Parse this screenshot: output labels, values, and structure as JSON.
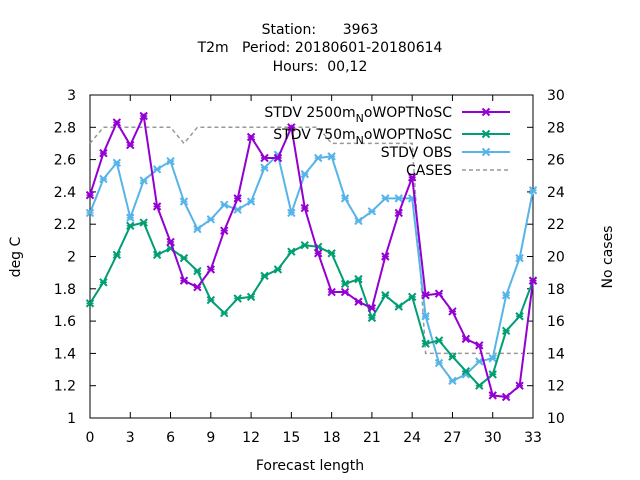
{
  "chart_data": {
    "type": "line",
    "title_lines": [
      "Station:      3963",
      "T2m   Period: 20180601-20180614",
      "Hours:  00,12"
    ],
    "xlabel": "Forecast length",
    "ylabel": "deg C",
    "y2label": "No cases",
    "xlim": [
      0,
      33
    ],
    "ylim": [
      1,
      3
    ],
    "y2lim": [
      10,
      30
    ],
    "xticks": [
      0,
      3,
      6,
      9,
      12,
      15,
      18,
      21,
      24,
      27,
      30,
      33
    ],
    "yticks": [
      1,
      1.2,
      1.4,
      1.6,
      1.8,
      2,
      2.2,
      2.4,
      2.6,
      2.8,
      3
    ],
    "y2ticks": [
      10,
      12,
      14,
      16,
      18,
      20,
      22,
      24,
      26,
      28,
      30
    ],
    "x": [
      0,
      1,
      2,
      3,
      4,
      5,
      6,
      7,
      8,
      9,
      10,
      11,
      12,
      13,
      14,
      15,
      16,
      17,
      18,
      19,
      20,
      21,
      22,
      23,
      24,
      25,
      26,
      27,
      28,
      29,
      30,
      31,
      32,
      33
    ],
    "legend_position": "top-right",
    "grid": false,
    "series": [
      {
        "name": "STDV 2500m_oWOPTNoSC",
        "name_parts": [
          "STDV 2500m",
          "N",
          "oWOPTNoSC"
        ],
        "color": "#9400d3",
        "marker": "x",
        "axis": "y",
        "values": [
          2.38,
          2.64,
          2.83,
          2.69,
          2.87,
          2.31,
          2.09,
          1.85,
          1.81,
          1.92,
          2.16,
          2.36,
          2.74,
          2.61,
          2.61,
          2.8,
          2.3,
          2.02,
          1.78,
          1.78,
          1.72,
          1.68,
          2.0,
          2.27,
          2.49,
          1.76,
          1.77,
          1.66,
          1.49,
          1.45,
          1.14,
          1.13,
          1.2,
          1.85
        ]
      },
      {
        "name": "STDV 750m_oWOPTNoSC",
        "name_parts": [
          "STDV 750m",
          "N",
          "oWOPTNoSC"
        ],
        "color": "#009e73",
        "marker": "x",
        "axis": "y",
        "values": [
          1.71,
          1.84,
          2.01,
          2.19,
          2.21,
          2.01,
          2.05,
          1.99,
          1.91,
          1.73,
          1.65,
          1.74,
          1.75,
          1.88,
          1.92,
          2.03,
          2.07,
          2.06,
          2.02,
          1.83,
          1.86,
          1.62,
          1.76,
          1.69,
          1.75,
          1.46,
          1.48,
          1.38,
          1.29,
          1.2,
          1.27,
          1.54,
          1.63,
          1.85
        ]
      },
      {
        "name": "STDV OBS",
        "color": "#56b4e9",
        "marker": "x",
        "axis": "y",
        "values": [
          2.27,
          2.48,
          2.58,
          2.24,
          2.47,
          2.54,
          2.59,
          2.34,
          2.17,
          2.23,
          2.32,
          2.29,
          2.34,
          2.55,
          2.63,
          2.27,
          2.51,
          2.61,
          2.62,
          2.36,
          2.22,
          2.28,
          2.36,
          2.36,
          2.36,
          1.63,
          1.34,
          1.23,
          1.27,
          1.35,
          1.37,
          1.76,
          1.99,
          2.41
        ]
      },
      {
        "name": "CASES",
        "color": "#999999",
        "dashed": true,
        "axis": "y2",
        "values": [
          27,
          28,
          28,
          28,
          28,
          28,
          28,
          27,
          28,
          28,
          28,
          28,
          28,
          28,
          28,
          28,
          28,
          28,
          27,
          27,
          27,
          27,
          27,
          27,
          27,
          14,
          14,
          14,
          14,
          14,
          14,
          14,
          14,
          14
        ]
      }
    ]
  }
}
